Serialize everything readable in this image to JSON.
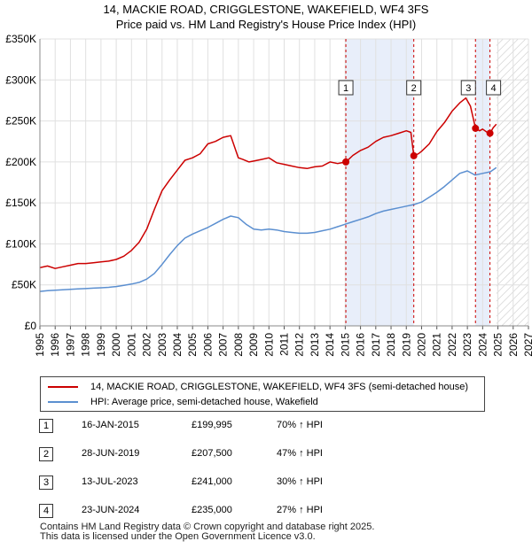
{
  "title_line1": "14, MACKIE ROAD, CRIGGLESTONE, WAKEFIELD, WF4 3FS",
  "title_line2": "Price paid vs. HM Land Registry's House Price Index (HPI)",
  "chart_data": {
    "type": "line",
    "title": "14, MACKIE ROAD, CRIGGLESTONE, WAKEFIELD, WF4 3FS",
    "subtitle": "Price paid vs. HM Land Registry's House Price Index (HPI)",
    "xlabel": "",
    "ylabel": "",
    "xlim": [
      1995,
      2027
    ],
    "ylim": [
      0,
      350000
    ],
    "grid": true,
    "yticks": [
      {
        "value": 0,
        "label": "£0"
      },
      {
        "value": 50000,
        "label": "£50K"
      },
      {
        "value": 100000,
        "label": "£100K"
      },
      {
        "value": 150000,
        "label": "£150K"
      },
      {
        "value": 200000,
        "label": "£200K"
      },
      {
        "value": 250000,
        "label": "£250K"
      },
      {
        "value": 300000,
        "label": "£300K"
      },
      {
        "value": 350000,
        "label": "£350K"
      }
    ],
    "xticks": [
      "1995",
      "1996",
      "1997",
      "1998",
      "1999",
      "2000",
      "2001",
      "2002",
      "2003",
      "2004",
      "2005",
      "2006",
      "2007",
      "2008",
      "2009",
      "2010",
      "2011",
      "2012",
      "2013",
      "2014",
      "2015",
      "2016",
      "2017",
      "2018",
      "2019",
      "2020",
      "2021",
      "2022",
      "2023",
      "2024",
      "2025",
      "2026",
      "2027"
    ],
    "shaded_ranges": [
      {
        "from": 2015.04,
        "to": 2019.49
      },
      {
        "from": 2023.53,
        "to": 2024.48
      }
    ],
    "hatched_from": 2024.9,
    "series": [
      {
        "name": "14, MACKIE ROAD, CRIGGLESTONE, WAKEFIELD, WF4 3FS (semi-detached house)",
        "color": "#cc0000",
        "x": [
          1995.0,
          1995.5,
          1996.0,
          1996.5,
          1997.0,
          1997.5,
          1998.0,
          1998.5,
          1999.0,
          1999.5,
          2000.0,
          2000.5,
          2001.0,
          2001.5,
          2002.0,
          2002.5,
          2003.0,
          2003.5,
          2004.0,
          2004.5,
          2005.0,
          2005.5,
          2006.0,
          2006.5,
          2007.0,
          2007.5,
          2008.0,
          2008.3,
          2008.7,
          2009.0,
          2009.5,
          2010.0,
          2010.5,
          2011.0,
          2011.5,
          2012.0,
          2012.5,
          2013.0,
          2013.5,
          2014.0,
          2014.5,
          2015.04,
          2015.5,
          2016.0,
          2016.5,
          2017.0,
          2017.5,
          2018.0,
          2018.5,
          2019.0,
          2019.3,
          2019.49,
          2019.8,
          2020.0,
          2020.5,
          2021.0,
          2021.5,
          2022.0,
          2022.5,
          2022.9,
          2023.2,
          2023.53,
          2023.8,
          2024.0,
          2024.3,
          2024.48,
          2024.7,
          2024.9
        ],
        "values": [
          71000,
          73000,
          70000,
          72000,
          74000,
          76000,
          76000,
          77000,
          78000,
          79000,
          81000,
          85000,
          92000,
          102000,
          118000,
          142000,
          165000,
          178000,
          190000,
          202000,
          205000,
          210000,
          222000,
          225000,
          230000,
          232000,
          205000,
          203000,
          200000,
          201000,
          203000,
          205000,
          199000,
          197000,
          195000,
          193000,
          192000,
          194000,
          195000,
          200000,
          198000,
          199995,
          208000,
          214000,
          218000,
          225000,
          230000,
          232000,
          235000,
          238000,
          236000,
          207500,
          210000,
          213000,
          222000,
          237000,
          248000,
          262000,
          272000,
          278000,
          268000,
          241000,
          238000,
          240000,
          236000,
          235000,
          242000,
          246000
        ]
      },
      {
        "name": "HPI: Average price, semi-detached house, Wakefield",
        "color": "#5b8fd0",
        "x": [
          1995.0,
          1995.5,
          1996.0,
          1996.5,
          1997.0,
          1997.5,
          1998.0,
          1998.5,
          1999.0,
          1999.5,
          2000.0,
          2000.5,
          2001.0,
          2001.5,
          2002.0,
          2002.5,
          2003.0,
          2003.5,
          2004.0,
          2004.5,
          2005.0,
          2005.5,
          2006.0,
          2006.5,
          2007.0,
          2007.5,
          2008.0,
          2008.5,
          2009.0,
          2009.5,
          2010.0,
          2010.5,
          2011.0,
          2011.5,
          2012.0,
          2012.5,
          2013.0,
          2013.5,
          2014.0,
          2014.5,
          2015.0,
          2015.5,
          2016.0,
          2016.5,
          2017.0,
          2017.5,
          2018.0,
          2018.5,
          2019.0,
          2019.5,
          2020.0,
          2020.5,
          2021.0,
          2021.5,
          2022.0,
          2022.5,
          2023.0,
          2023.5,
          2024.0,
          2024.5,
          2024.9
        ],
        "values": [
          42000,
          43000,
          43500,
          44000,
          44500,
          45000,
          45500,
          46000,
          46500,
          47000,
          48000,
          49500,
          51000,
          53000,
          57000,
          64000,
          75000,
          87000,
          98000,
          107000,
          112000,
          116000,
          120000,
          125000,
          130000,
          134000,
          132000,
          124000,
          118000,
          117000,
          118000,
          117000,
          115000,
          114000,
          113000,
          113000,
          114000,
          116000,
          118000,
          121000,
          124000,
          127000,
          130000,
          133000,
          137000,
          140000,
          142000,
          144000,
          146000,
          148000,
          151000,
          157000,
          163000,
          170000,
          178000,
          186000,
          189000,
          184000,
          186000,
          188000,
          193000
        ]
      }
    ],
    "transactions": [
      {
        "n": "1",
        "x": 2015.04,
        "price": 199995
      },
      {
        "n": "2",
        "x": 2019.49,
        "price": 207500
      },
      {
        "n": "3",
        "x": 2023.53,
        "price": 241000
      },
      {
        "n": "4",
        "x": 2024.48,
        "price": 235000
      }
    ]
  },
  "legend": {
    "property_label": "14, MACKIE ROAD, CRIGGLESTONE, WAKEFIELD, WF4 3FS (semi-detached house)",
    "hpi_label": "HPI: Average price, semi-detached house, Wakefield",
    "property_color": "#cc0000",
    "hpi_color": "#5b8fd0"
  },
  "transactions_table": [
    {
      "n": "1",
      "date": "16-JAN-2015",
      "price": "£199,995",
      "hpi": "70% ↑ HPI"
    },
    {
      "n": "2",
      "date": "28-JUN-2019",
      "price": "£207,500",
      "hpi": "47% ↑ HPI"
    },
    {
      "n": "3",
      "date": "13-JUL-2023",
      "price": "£241,000",
      "hpi": "30% ↑ HPI"
    },
    {
      "n": "4",
      "date": "23-JUN-2024",
      "price": "£235,000",
      "hpi": "27% ↑ HPI"
    }
  ],
  "footer": {
    "line1": "Contains HM Land Registry data © Crown copyright and database right 2025.",
    "line2": "This data is licensed under the Open Government Licence v3.0."
  }
}
